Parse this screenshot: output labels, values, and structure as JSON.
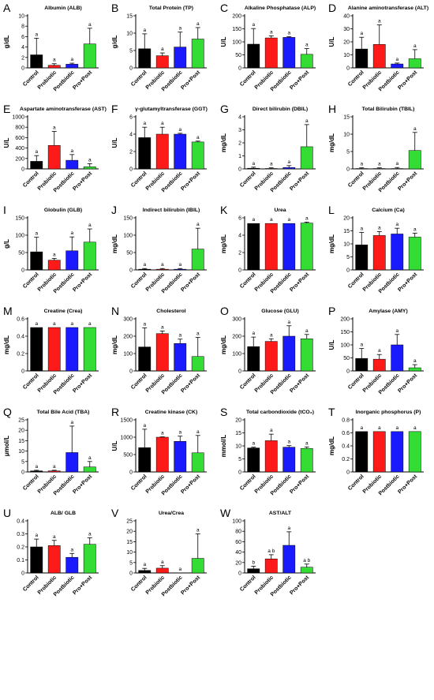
{
  "categories": [
    "Control",
    "Probiotic",
    "Postbiotic",
    "Pro+Post"
  ],
  "colors": [
    "#000000",
    "#ff1a1a",
    "#1a1aff",
    "#33dd33"
  ],
  "chart_data": [
    {
      "letter": "A",
      "type": "bar",
      "title": "Albumin (ALB)",
      "ylabel": "g/dL",
      "ylim": [
        0,
        10
      ],
      "ticks": [
        0,
        2,
        4,
        6,
        8,
        10
      ],
      "values": [
        2.5,
        0.5,
        0.7,
        4.6
      ],
      "errors": [
        3.2,
        0.3,
        0.2,
        3.0
      ],
      "sig": [
        "a",
        "a",
        "a",
        "a"
      ]
    },
    {
      "letter": "B",
      "type": "bar",
      "title": "Total Protein (TP)",
      "ylabel": "g/dL",
      "ylim": [
        0,
        15
      ],
      "ticks": [
        0,
        5,
        10,
        15
      ],
      "values": [
        5.5,
        3.5,
        6.0,
        8.3
      ],
      "errors": [
        4.3,
        0.8,
        4.3,
        3.3
      ],
      "sig": [
        "a",
        "a",
        "a",
        "a"
      ]
    },
    {
      "letter": "C",
      "type": "bar",
      "title": "Alkaline Phosphatase (ALP)",
      "ylabel": "U/L",
      "ylim": [
        0,
        200
      ],
      "ticks": [
        0,
        50,
        100,
        150,
        200
      ],
      "values": [
        91,
        115,
        117,
        52
      ],
      "errors": [
        60,
        8,
        3,
        22
      ],
      "sig": [
        "a",
        "a",
        "a",
        "a"
      ]
    },
    {
      "letter": "D",
      "type": "bar",
      "title": "Alanine aminotransferase (ALT)",
      "ylabel": "U/L",
      "ylim": [
        0,
        40
      ],
      "ticks": [
        0,
        10,
        20,
        30,
        40
      ],
      "values": [
        14.5,
        18,
        3,
        7
      ],
      "errors": [
        9,
        15,
        0.7,
        7
      ],
      "sig": [
        "a",
        "a",
        "a",
        "a"
      ]
    },
    {
      "letter": "E",
      "type": "bar",
      "title": "Aspartate aminotransferase (AST)",
      "ylabel": "U/L",
      "ylim": [
        0,
        1000
      ],
      "ticks": [
        0,
        200,
        400,
        600,
        800,
        1000
      ],
      "values": [
        145,
        450,
        165,
        40
      ],
      "errors": [
        110,
        270,
        110,
        60
      ],
      "sig": [
        "a",
        "a",
        "a",
        "a"
      ]
    },
    {
      "letter": "F",
      "type": "bar",
      "title": "γ-glutamyltransferase (GGT)",
      "ylabel": "U/L",
      "ylim": [
        0,
        6
      ],
      "ticks": [
        0,
        2,
        4,
        6
      ],
      "values": [
        3.6,
        4.0,
        4.0,
        3.1
      ],
      "errors": [
        1.2,
        0.8,
        0.1,
        0.1
      ],
      "sig": [
        "a",
        "a",
        "a",
        "a"
      ]
    },
    {
      "letter": "G",
      "type": "bar",
      "title": "Direct bilirubin (DBIL)",
      "ylabel": "mg/dL",
      "ylim": [
        0,
        4
      ],
      "ticks": [
        0,
        1,
        2,
        3,
        4
      ],
      "values": [
        0.05,
        0.03,
        0.1,
        1.7
      ],
      "errors": [
        0.08,
        0.05,
        0.15,
        1.7
      ],
      "sig": [
        "a",
        "a",
        "a",
        "a"
      ]
    },
    {
      "letter": "H",
      "type": "bar",
      "title": "Total Bilirubin (TBIL)",
      "ylabel": "mg/dL",
      "ylim": [
        0,
        15
      ],
      "ticks": [
        0,
        5,
        10,
        15
      ],
      "values": [
        0.1,
        0.1,
        0.1,
        5.3
      ],
      "errors": [
        0.2,
        0.2,
        0.3,
        5.2
      ],
      "sig": [
        "a",
        "a",
        "a",
        "a"
      ]
    },
    {
      "letter": "I",
      "type": "bar",
      "title": "Globulin (GLB)",
      "ylabel": "g/L",
      "ylim": [
        0,
        150
      ],
      "ticks": [
        0,
        50,
        100,
        150
      ],
      "values": [
        52,
        28,
        55,
        80
      ],
      "errors": [
        42,
        5,
        40,
        38
      ],
      "sig": [
        "a",
        "a",
        "a",
        "a"
      ]
    },
    {
      "letter": "J",
      "type": "bar",
      "title": "Indirect bilirubin (IBIL)",
      "ylabel": "mg/dL",
      "ylim": [
        0,
        150
      ],
      "ticks": [
        0,
        50,
        100,
        150
      ],
      "values": [
        2,
        2,
        2,
        60
      ],
      "errors": [
        2,
        2,
        2,
        60
      ],
      "sig": [
        "a",
        "a",
        "a",
        "a"
      ]
    },
    {
      "letter": "K",
      "type": "bar",
      "title": "Urea",
      "ylabel": "mg/dL",
      "ylim": [
        0,
        6
      ],
      "ticks": [
        0,
        2,
        4,
        6
      ],
      "values": [
        5.35,
        5.35,
        5.35,
        5.4
      ],
      "errors": [
        0,
        0,
        0,
        0.1
      ],
      "sig": [
        "a",
        "a",
        "a",
        "a"
      ]
    },
    {
      "letter": "L",
      "type": "bar",
      "title": "Calcium (Ca)",
      "ylabel": "mg/dL",
      "ylim": [
        0,
        20
      ],
      "ticks": [
        0,
        5,
        10,
        15,
        20
      ],
      "values": [
        9.6,
        13.2,
        13.8,
        12.6
      ],
      "errors": [
        4.8,
        1.5,
        2.2,
        1.5
      ],
      "sig": [
        "a",
        "a",
        "a",
        "a"
      ]
    },
    {
      "letter": "M",
      "type": "bar",
      "title": "Creatine (Crea)",
      "ylabel": "mg/dL",
      "ylim": [
        0,
        0.6
      ],
      "ticks": [
        0.0,
        0.2,
        0.4,
        0.6
      ],
      "values": [
        0.5,
        0.5,
        0.5,
        0.5
      ],
      "errors": [
        0,
        0,
        0,
        0
      ],
      "sig": [
        "a",
        "a",
        "a",
        "a"
      ]
    },
    {
      "letter": "N",
      "type": "bar",
      "title": "Cholesterol",
      "ylabel": "mg/dL",
      "ylim": [
        0,
        300
      ],
      "ticks": [
        0,
        100,
        200,
        300
      ],
      "values": [
        138,
        215,
        158,
        83
      ],
      "errors": [
        110,
        15,
        25,
        110
      ],
      "sig": [
        "a",
        "a",
        "a",
        "a"
      ]
    },
    {
      "letter": "O",
      "type": "bar",
      "title": "Glucose (GLU)",
      "ylabel": "mg/dL",
      "ylim": [
        0,
        300
      ],
      "ticks": [
        0,
        100,
        200,
        300
      ],
      "values": [
        140,
        170,
        200,
        185
      ],
      "errors": [
        55,
        15,
        60,
        25
      ],
      "sig": [
        "a",
        "a",
        "a",
        "a"
      ]
    },
    {
      "letter": "P",
      "type": "bar",
      "title": "Amylase (AMY)",
      "ylabel": "U/L",
      "ylim": [
        0,
        200
      ],
      "ticks": [
        0,
        50,
        100,
        150,
        200
      ],
      "values": [
        48,
        45,
        100,
        12
      ],
      "errors": [
        38,
        18,
        40,
        12
      ],
      "sig": [
        "a",
        "a",
        "a",
        "a"
      ]
    },
    {
      "letter": "Q",
      "type": "bar",
      "title": "Total Bile Acid (TBA)",
      "ylabel": "μmol/L",
      "ylim": [
        0,
        25
      ],
      "ticks": [
        0,
        5,
        10,
        15,
        20,
        25
      ],
      "values": [
        0.5,
        0.5,
        9.3,
        2.4
      ],
      "errors": [
        0.3,
        0.3,
        12.7,
        2.6
      ],
      "sig": [
        "a",
        "a",
        "a",
        "a"
      ]
    },
    {
      "letter": "R",
      "type": "bar",
      "title": "Creatine kinase (CK)",
      "ylabel": "U/L",
      "ylim": [
        0,
        1500
      ],
      "ticks": [
        0,
        500,
        1000,
        1500
      ],
      "values": [
        700,
        1000,
        880,
        550
      ],
      "errors": [
        530,
        10,
        150,
        500
      ],
      "sig": [
        "a",
        "a",
        "a",
        "a"
      ]
    },
    {
      "letter": "S",
      "type": "bar",
      "title": "Total carbondioxide (tCO₂)",
      "ylabel": "mmol/L",
      "ylim": [
        0,
        20
      ],
      "ticks": [
        0,
        5,
        10,
        15,
        20
      ],
      "values": [
        9.2,
        12,
        9.5,
        9
      ],
      "errors": [
        0.3,
        2.5,
        0.6,
        0.6
      ],
      "sig": [
        "a",
        "a",
        "a",
        "a"
      ]
    },
    {
      "letter": "T",
      "type": "bar",
      "title": "Inorganic phosphorus (P)",
      "ylabel": "mg/dL",
      "ylim": [
        0,
        0.8
      ],
      "ticks": [
        0.0,
        0.2,
        0.4,
        0.6,
        0.8
      ],
      "values": [
        0.62,
        0.62,
        0.62,
        0.62
      ],
      "errors": [
        0,
        0,
        0,
        0
      ],
      "sig": [
        "a",
        "a",
        "a",
        "a"
      ]
    },
    {
      "letter": "U",
      "type": "bar",
      "title": "ALB/ GLB",
      "ylabel": "",
      "ylim": [
        0,
        0.4
      ],
      "ticks": [
        0.0,
        0.1,
        0.2,
        0.3,
        0.4
      ],
      "values": [
        0.2,
        0.21,
        0.12,
        0.22
      ],
      "errors": [
        0.06,
        0.04,
        0.03,
        0.05
      ],
      "sig": [
        "a",
        "a",
        "a",
        "a"
      ]
    },
    {
      "letter": "V",
      "type": "bar",
      "title": "Urea/Crea",
      "ylabel": "",
      "ylim": [
        0,
        25
      ],
      "ticks": [
        0,
        5,
        10,
        15,
        20,
        25
      ],
      "values": [
        1.2,
        2.3,
        0.0,
        7.0
      ],
      "errors": [
        1.0,
        1.2,
        0,
        11.8
      ],
      "sig": [
        "a",
        "a",
        "a",
        "a"
      ]
    },
    {
      "letter": "W",
      "type": "bar",
      "title": "AST/ALT",
      "ylabel": "",
      "ylim": [
        0,
        100
      ],
      "ticks": [
        0,
        20,
        40,
        60,
        80,
        100
      ],
      "values": [
        8,
        27,
        53,
        11
      ],
      "errors": [
        5,
        8,
        26,
        6
      ],
      "sig": [
        "b",
        "a b",
        "a",
        "a b"
      ]
    }
  ]
}
